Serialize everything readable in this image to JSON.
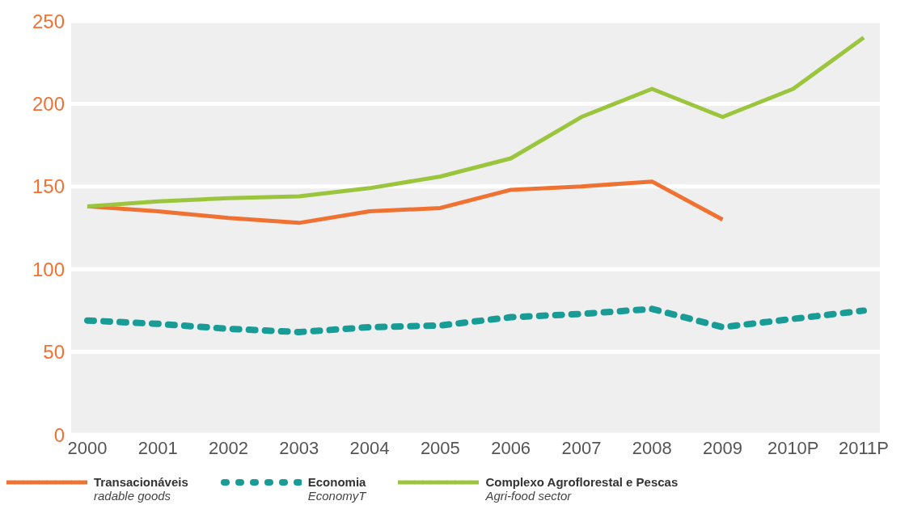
{
  "chart_data": {
    "type": "line",
    "categories": [
      "2000",
      "2001",
      "2002",
      "2003",
      "2004",
      "2005",
      "2006",
      "2007",
      "2008",
      "2009",
      "2010P",
      "2011P"
    ],
    "series": [
      {
        "name": "Transacionáveis",
        "color": "#f07232",
        "line_style": "solid",
        "values": [
          138,
          135,
          131,
          128,
          135,
          137,
          148,
          150,
          153,
          130,
          null,
          null
        ]
      },
      {
        "name": "Economia",
        "color": "#1a9c96",
        "line_style": "dotted",
        "values": [
          69,
          67,
          64,
          62,
          65,
          66,
          71,
          73,
          76,
          65,
          70,
          75
        ]
      },
      {
        "name": "Complexo Agroflorestal e Pescas",
        "color": "#9bc53d",
        "line_style": "solid",
        "values": [
          138,
          141,
          143,
          144,
          149,
          156,
          167,
          192,
          209,
          192,
          209,
          240
        ]
      }
    ],
    "annotations": [
      "radable goods",
      "EconomyT",
      "Agri-food sector"
    ],
    "ylim": [
      0,
      250
    ],
    "yticks": [
      0,
      50,
      100,
      150,
      200,
      250
    ],
    "grid": "y",
    "legend": "bottom",
    "marker": "none"
  }
}
